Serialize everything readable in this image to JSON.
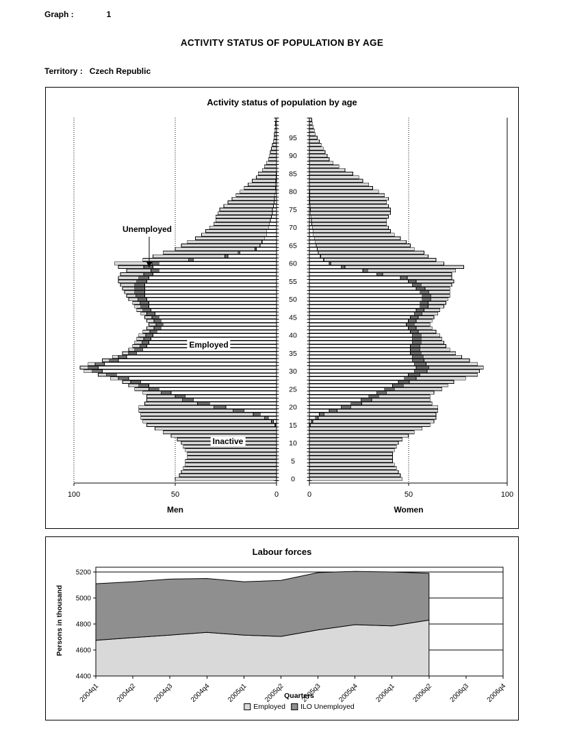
{
  "page": {
    "graph_label": "Graph :",
    "graph_number": "1",
    "main_title": "ACTIVITY STATUS OF POPULATION BY AGE",
    "territory_label": "Territory :",
    "territory_value": "Czech Republic"
  },
  "pyramid_annotations": {
    "unemployed": "Unemployed",
    "employed": "Employed",
    "inactive": "Inactive"
  },
  "colors": {
    "employed_fill": "#ffffff",
    "unemployed_fill": "#737373",
    "inactive_fill": "#d9d9d9",
    "area_employed_fill": "#d9d9d9",
    "area_unemployed_fill": "#8f8f8f",
    "stroke": "#000000"
  },
  "chart_data": [
    {
      "type": "bar",
      "subtype": "population-pyramid",
      "title": "Activity status of population by age",
      "unit": "thousands of persons per year of age",
      "sides": {
        "left": "Men",
        "right": "Women"
      },
      "status_categories": [
        "Employed",
        "Unemployed",
        "Inactive"
      ],
      "x_axis": {
        "men_ticks": [
          100,
          50,
          0
        ],
        "women_ticks": [
          0,
          50,
          100
        ],
        "max": 100
      },
      "age_axis": {
        "min": 0,
        "max": 100,
        "label_step": 5
      },
      "men": {
        "total": [
          50,
          48,
          47,
          46,
          45,
          45,
          44,
          44,
          45,
          46,
          47,
          49,
          52,
          56,
          60,
          64,
          66,
          67,
          67,
          68,
          68,
          65,
          64,
          64,
          66,
          70,
          73,
          76,
          82,
          88,
          95,
          97,
          93,
          86,
          81,
          76,
          73,
          71,
          70,
          69,
          68,
          66,
          64,
          63,
          64,
          65,
          67,
          69,
          70,
          71,
          73,
          74,
          75,
          76,
          77,
          78,
          78,
          77,
          74,
          78,
          80,
          66,
          61,
          56,
          50,
          47,
          44,
          40,
          37,
          35,
          33,
          31,
          30,
          30,
          29,
          28,
          26,
          24,
          22,
          20,
          18,
          16,
          14,
          12,
          10,
          9,
          7,
          6,
          5,
          4,
          3.5,
          3,
          2.5,
          2,
          1.6,
          1.3,
          1,
          0.8,
          0.6,
          0.5,
          0.4
        ],
        "employed": [
          0,
          0,
          0,
          0,
          0,
          0,
          0,
          0,
          0,
          0,
          0,
          0,
          0,
          0,
          0,
          0.5,
          1.5,
          4,
          8,
          16,
          25,
          33,
          41,
          45,
          52,
          58,
          63,
          67,
          73,
          79,
          86,
          88,
          85,
          78,
          74,
          69,
          66,
          64,
          63,
          62,
          61,
          59,
          57,
          56,
          57,
          58,
          60,
          62,
          63,
          63,
          64,
          65,
          65,
          65,
          65,
          64,
          63,
          61,
          58,
          61,
          58,
          41,
          24,
          18,
          10,
          8,
          7,
          6,
          5,
          5,
          4,
          3.5,
          3,
          2.5,
          2,
          2,
          1.5,
          1.2,
          1,
          0.8,
          0.6,
          0.5,
          0.4,
          0.3,
          0.2,
          0.2,
          0,
          0,
          0,
          0,
          0,
          0,
          0,
          0,
          0,
          0,
          0,
          0,
          0,
          0,
          0
        ],
        "unemployed": [
          0,
          0,
          0,
          0,
          0,
          0,
          0,
          0,
          0,
          0,
          0,
          0,
          0,
          0,
          0,
          0.4,
          1,
          2,
          3.5,
          5.5,
          6,
          6,
          5.5,
          5,
          5,
          5,
          5,
          5,
          5,
          5,
          5,
          5,
          4.5,
          4.5,
          4,
          4,
          4,
          3.5,
          3.5,
          3.5,
          3.5,
          3.5,
          3.5,
          3.5,
          3.5,
          3.5,
          4,
          4,
          4,
          4.5,
          4.5,
          4.5,
          5,
          5,
          5,
          5,
          5,
          4.5,
          4,
          4.5,
          3.5,
          2.5,
          1.5,
          1,
          0.6,
          0.4,
          0.3,
          0,
          0,
          0,
          0,
          0,
          0,
          0,
          0,
          0,
          0,
          0,
          0,
          0,
          0,
          0,
          0,
          0,
          0,
          0,
          0,
          0,
          0,
          0,
          0,
          0,
          0,
          0,
          0,
          0,
          0,
          0,
          0,
          0,
          0,
          0
        ]
      },
      "women": {
        "total": [
          47,
          46,
          45,
          44,
          43,
          42,
          42,
          42,
          43,
          44,
          45,
          47,
          50,
          53,
          57,
          61,
          63,
          64,
          64,
          65,
          65,
          62,
          61,
          61,
          63,
          67,
          70,
          73,
          79,
          85,
          86,
          88,
          85,
          81,
          77,
          74,
          71,
          69,
          68,
          67,
          66,
          64,
          62,
          61,
          62,
          63,
          65,
          66,
          68,
          69,
          70,
          71,
          71,
          71,
          72,
          73,
          72,
          72,
          74,
          78,
          68,
          64,
          60,
          58,
          53,
          51,
          49,
          46,
          43,
          41,
          40,
          39,
          39,
          40,
          41,
          41,
          40,
          39,
          40,
          38,
          35,
          32,
          30,
          27,
          25,
          22,
          18,
          15,
          12,
          10,
          9,
          8,
          7,
          6,
          5,
          4,
          3,
          2.5,
          2,
          1.5,
          1.2
        ],
        "employed": [
          0,
          0,
          0,
          0,
          0,
          0,
          0,
          0,
          0,
          0,
          0,
          0,
          0,
          0,
          0,
          0.3,
          1,
          3,
          5,
          10,
          16,
          21,
          26,
          30,
          34,
          38,
          42,
          45,
          48,
          50,
          53,
          54,
          53,
          52,
          52,
          51,
          51,
          51,
          52,
          52,
          52,
          51,
          50,
          49,
          50,
          51,
          53,
          54,
          56,
          56,
          57,
          57,
          56,
          54,
          52,
          50,
          46,
          34,
          27,
          16,
          10,
          7,
          5.5,
          4.5,
          4,
          3.5,
          3,
          2.5,
          2,
          1.8,
          1.5,
          1.2,
          1,
          0.8,
          0.6,
          0.5,
          0.4,
          0.3,
          0.3,
          0.2,
          0.2,
          0,
          0,
          0,
          0,
          0,
          0,
          0,
          0,
          0,
          0,
          0,
          0,
          0,
          0,
          0,
          0,
          0,
          0,
          0,
          0
        ],
        "unemployed": [
          0,
          0,
          0,
          0,
          0,
          0,
          0,
          0,
          0,
          0,
          0,
          0,
          0,
          0,
          0,
          0.3,
          0.7,
          1.5,
          2.5,
          4,
          5,
          5.5,
          5.5,
          5,
          5,
          5,
          5.5,
          5.5,
          6,
          6,
          6.5,
          6.5,
          6,
          6,
          5.5,
          5.5,
          5,
          5,
          4.5,
          4.5,
          4.5,
          4,
          4,
          4,
          4,
          4,
          4,
          4,
          4,
          4,
          4.5,
          4.5,
          4.5,
          4.5,
          4.5,
          4,
          3.5,
          3,
          2.5,
          2,
          1,
          0.5,
          0.3,
          0,
          0,
          0,
          0,
          0,
          0,
          0,
          0,
          0,
          0,
          0,
          0,
          0,
          0,
          0,
          0,
          0,
          0,
          0,
          0,
          0,
          0,
          0,
          0,
          0,
          0,
          0,
          0,
          0,
          0,
          0,
          0,
          0,
          0,
          0,
          0,
          0,
          0
        ]
      }
    },
    {
      "type": "area",
      "subtype": "stacked-area",
      "title": "Labour forces",
      "xlabel": "Quarters",
      "ylabel": "Persons in thousand",
      "ylim": [
        4400,
        5250
      ],
      "y_ticks": [
        4400,
        4600,
        4800,
        5000,
        5200
      ],
      "categories": [
        "2004q1",
        "2004q2",
        "2004q3",
        "2004q4",
        "2005q1",
        "2005q2",
        "2005q3",
        "2005q4",
        "2006q1",
        "2006q2",
        "2006q3",
        "2006q4"
      ],
      "series": [
        {
          "name": "Employed",
          "values": [
            4675,
            4695,
            4715,
            4735,
            4715,
            4705,
            4755,
            4795,
            4785,
            4830
          ]
        },
        {
          "name": "ILO Unemployed",
          "values": [
            435,
            430,
            430,
            415,
            410,
            430,
            440,
            410,
            415,
            360
          ]
        }
      ],
      "legend_position": "bottom",
      "grid": "horizontal"
    }
  ]
}
